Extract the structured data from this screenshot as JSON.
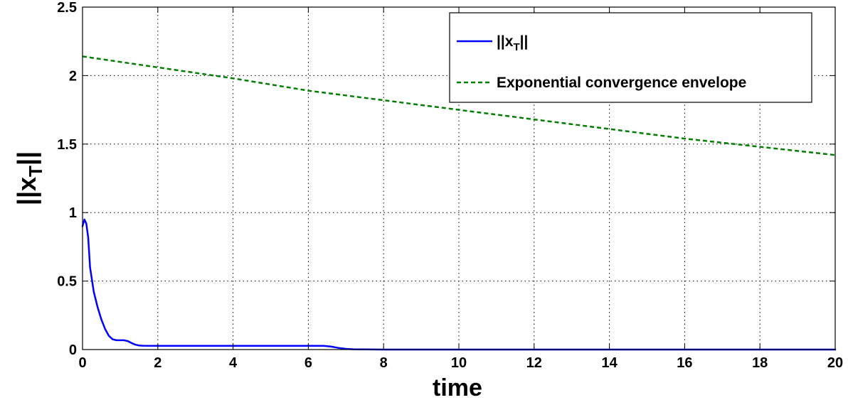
{
  "chart_data": {
    "type": "line",
    "xlabel": "time",
    "ylabel_main": "||x",
    "ylabel_sub": "T",
    "ylabel_end": "||",
    "xlim": [
      0,
      20
    ],
    "ylim": [
      0,
      2.5
    ],
    "xticks": [
      "0",
      "2",
      "4",
      "6",
      "8",
      "10",
      "12",
      "14",
      "16",
      "18",
      "20"
    ],
    "yticks": [
      "0",
      "0.5",
      "1",
      "1.5",
      "2",
      "2.5"
    ],
    "grid": true,
    "legend_position": "top-right",
    "series": [
      {
        "legend_main": "||x",
        "legend_sub": "T",
        "legend_end": "||",
        "color": "#0000ff",
        "style": "solid",
        "x": [
          0,
          0.05,
          0.1,
          0.15,
          0.2,
          0.3,
          0.4,
          0.5,
          0.6,
          0.7,
          0.8,
          0.9,
          1.0,
          1.1,
          1.2,
          1.3,
          1.4,
          1.5,
          1.6,
          2,
          3,
          4,
          5,
          6,
          6.4,
          6.6,
          6.8,
          7.0,
          7.2,
          7.5,
          8,
          10,
          12,
          14,
          16,
          18,
          20
        ],
        "y": [
          0.9,
          0.95,
          0.92,
          0.82,
          0.6,
          0.42,
          0.31,
          0.22,
          0.15,
          0.1,
          0.075,
          0.068,
          0.068,
          0.068,
          0.062,
          0.048,
          0.036,
          0.03,
          0.028,
          0.027,
          0.027,
          0.027,
          0.027,
          0.027,
          0.027,
          0.022,
          0.012,
          0.005,
          0.002,
          0.001,
          0,
          0,
          0,
          0,
          0,
          0,
          0
        ]
      },
      {
        "legend": "Exponential convergence envelope",
        "color": "#007f00",
        "style": "dashed",
        "x": [
          0,
          2,
          4,
          6,
          8,
          10,
          12,
          14,
          16,
          18,
          20
        ],
        "y": [
          2.14,
          2.06,
          1.98,
          1.89,
          1.82,
          1.75,
          1.68,
          1.61,
          1.54,
          1.48,
          1.42
        ]
      }
    ]
  }
}
